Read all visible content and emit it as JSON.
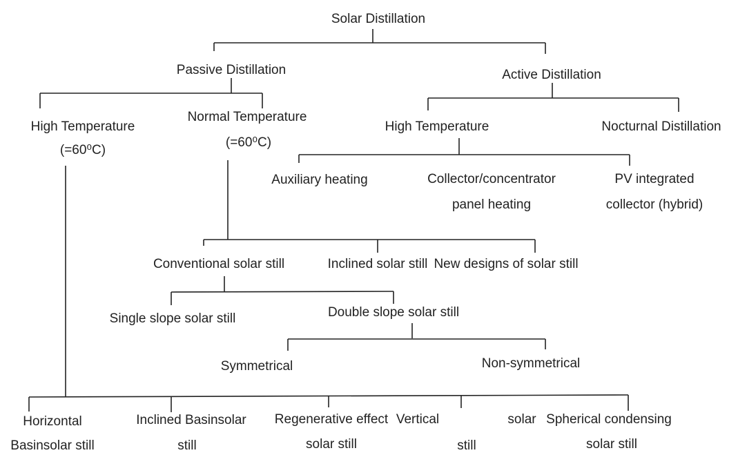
{
  "title": "Solar Distillation",
  "nodes": [
    {
      "label": "Passive Distillation"
    },
    {
      "label": "Active Distillation"
    },
    {
      "label": "High Temperature",
      "sub": "(=60⁰C)"
    },
    {
      "label": "Normal Temperature",
      "sub": "(=60⁰C)"
    },
    {
      "label": "High Temperature"
    },
    {
      "label": "Nocturnal Distillation"
    },
    {
      "label": "Auxiliary heating"
    },
    {
      "label": "Collector/concentrator",
      "sub": "panel heating"
    },
    {
      "label": "PV integrated",
      "sub": "collector (hybrid)"
    },
    {
      "label": "Conventional solar still"
    },
    {
      "label": "Inclined solar still"
    },
    {
      "label": "New designs of solar still"
    },
    {
      "label": "Single slope solar still"
    },
    {
      "label": "Double slope solar still"
    },
    {
      "label": "Symmetrical"
    },
    {
      "label": "Non-symmetrical"
    },
    {
      "label": "Horizontal",
      "sub": "Basinsolar still"
    },
    {
      "label": "Inclined Basinsolar",
      "sub": "still"
    },
    {
      "label": "Regenerative effect",
      "sub": "solar still"
    },
    {
      "label": "Vertical",
      "sub": "still"
    },
    {
      "label": "solar"
    },
    {
      "label": "Spherical condensing",
      "sub": "solar still"
    }
  ]
}
